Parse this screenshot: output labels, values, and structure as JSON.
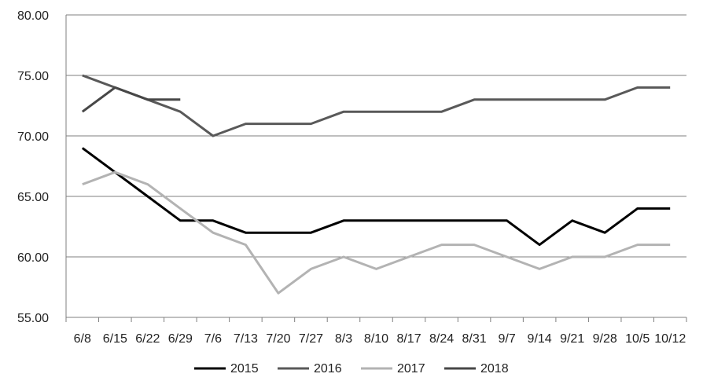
{
  "chart_data": {
    "type": "line",
    "title": "",
    "xlabel": "",
    "ylabel": "",
    "ylim": [
      55,
      80
    ],
    "y_ticks": [
      "55.00",
      "60.00",
      "65.00",
      "70.00",
      "75.00",
      "80.00"
    ],
    "y_tick_values": [
      55,
      60,
      65,
      70,
      75,
      80
    ],
    "grid": "horizontal",
    "legend_position": "bottom",
    "categories": [
      "6/8",
      "6/15",
      "6/22",
      "6/29",
      "7/6",
      "7/13",
      "7/20",
      "7/27",
      "8/3",
      "8/10",
      "8/17",
      "8/24",
      "8/31",
      "9/7",
      "9/14",
      "9/21",
      "9/28",
      "10/5",
      "10/12"
    ],
    "series": [
      {
        "name": "2015",
        "color": "#000000",
        "values": [
          69,
          67,
          65,
          63,
          63,
          62,
          62,
          62,
          63,
          63,
          63,
          63,
          63,
          63,
          61,
          63,
          62,
          64,
          64
        ]
      },
      {
        "name": "2016",
        "color": "#595959",
        "values": [
          75,
          74,
          73,
          72,
          70,
          71,
          71,
          71,
          72,
          72,
          72,
          72,
          73,
          73,
          73,
          73,
          73,
          74,
          74
        ]
      },
      {
        "name": "2017",
        "color": "#b3b3b3",
        "values": [
          66,
          67,
          66,
          64,
          62,
          61,
          57,
          59,
          60,
          59,
          60,
          61,
          61,
          60,
          59,
          60,
          60,
          61,
          61
        ]
      },
      {
        "name": "2018",
        "color": "#474747",
        "values": [
          72,
          74,
          73,
          73,
          null,
          null,
          null,
          null,
          null,
          null,
          null,
          null,
          null,
          null,
          null,
          null,
          null,
          null,
          null
        ]
      }
    ]
  }
}
